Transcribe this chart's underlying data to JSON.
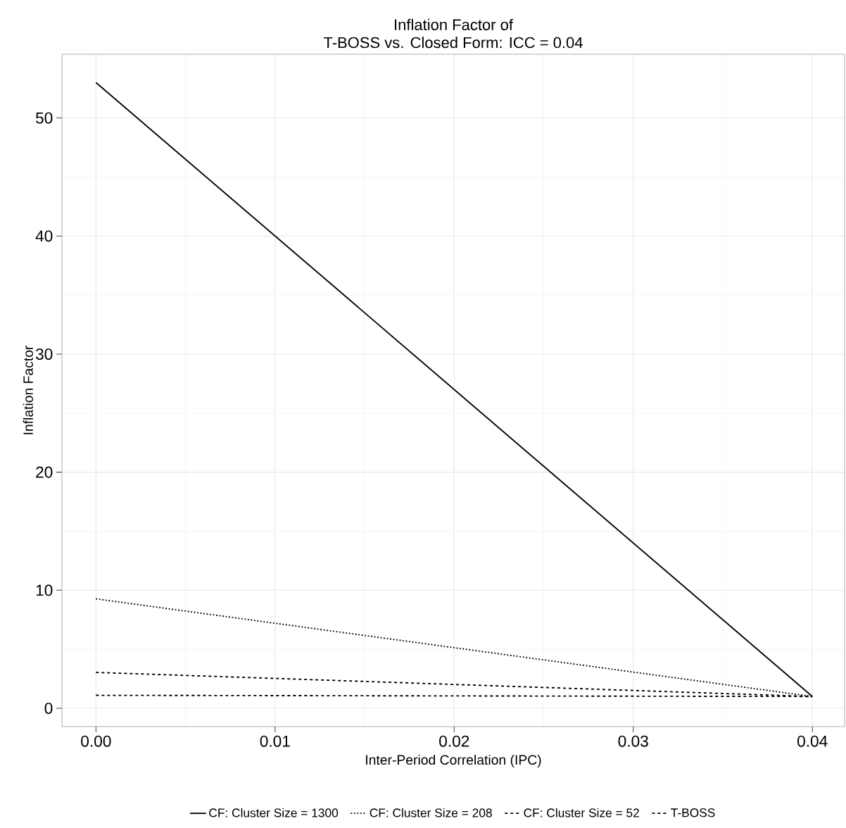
{
  "chart_data": {
    "type": "line",
    "title": "Inflation Factor of",
    "subtitle": "T-BOSS vs. Closed Form: ICC = 0.04",
    "xlabel": "Inter-Period Correlation (IPC)",
    "ylabel": "Inflation Factor",
    "x": [
      0,
      0.04
    ],
    "series": [
      {
        "name": "CF: Cluster Size = 1300",
        "color": "#000000",
        "line_style": "solid",
        "values": [
          53,
          1
        ]
      },
      {
        "name": "CF: Cluster Size = 208",
        "color": "#000000",
        "line_style": "dotted",
        "values": [
          9.27,
          1
        ]
      },
      {
        "name": "CF: Cluster Size = 52",
        "color": "#000000",
        "line_style": "dashed",
        "values": [
          3.04,
          1
        ]
      },
      {
        "name": "T-BOSS",
        "color": "#000000",
        "line_style": "dashed",
        "values": [
          1.1,
          1
        ]
      }
    ],
    "xlim": [
      -0.0019,
      0.0418
    ],
    "ylim": [
      -1.55,
      55.4
    ],
    "xticks": [
      {
        "value": 0,
        "label": "0.00"
      },
      {
        "value": 0.01,
        "label": "0.01"
      },
      {
        "value": 0.02,
        "label": "0.02"
      },
      {
        "value": 0.03,
        "label": "0.03"
      },
      {
        "value": 0.04,
        "label": "0.04"
      }
    ],
    "yticks": [
      0,
      10,
      20,
      30,
      40,
      50
    ],
    "grid": true,
    "legend": "bottom",
    "marker": "none"
  }
}
